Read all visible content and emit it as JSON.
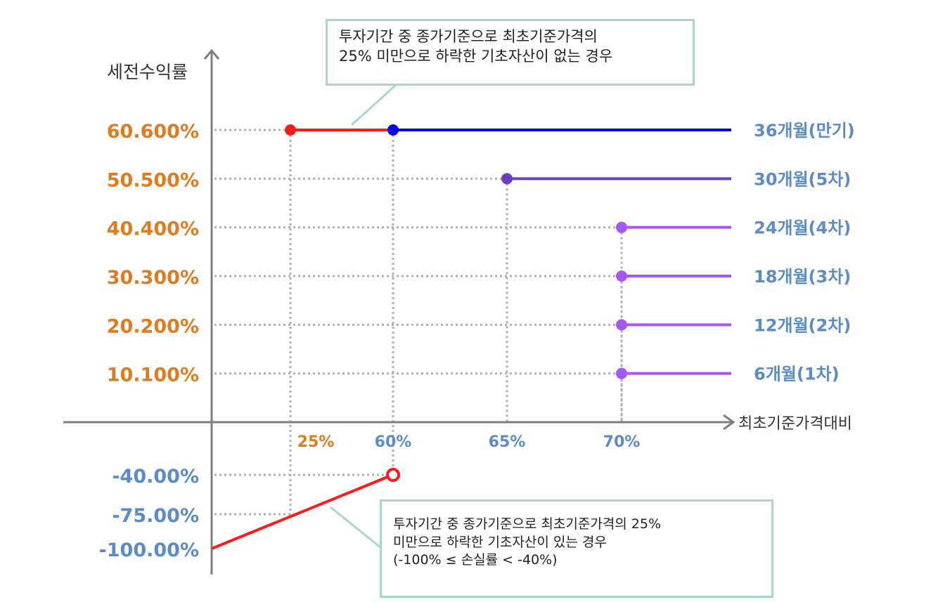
{
  "chart_data": {
    "type": "line",
    "ylabel": "세전수익률",
    "xlabel": "최초기준가격대비",
    "colors": {
      "orange": "#e07b20",
      "steel_blue": "#5b8cc8",
      "red": "#ff1a1a",
      "blue": "#0000ee",
      "indigo": "#6a3fc6",
      "violet": "#a855f7",
      "axis": "#7f7f7f",
      "grid": "#b0b0b0"
    },
    "y_ticks": [
      {
        "label": "60.600%",
        "value": 60.6,
        "color": "orange"
      },
      {
        "label": "50.500%",
        "value": 50.5,
        "color": "orange"
      },
      {
        "label": "40.400%",
        "value": 40.4,
        "color": "orange"
      },
      {
        "label": "30.300%",
        "value": 30.3,
        "color": "orange"
      },
      {
        "label": "20.200%",
        "value": 20.2,
        "color": "orange"
      },
      {
        "label": "10.100%",
        "value": 10.1,
        "color": "orange"
      },
      {
        "label": "-40.00%",
        "value": -40,
        "color": "steel_blue"
      },
      {
        "label": "-75.00%",
        "value": -75,
        "color": "steel_blue"
      },
      {
        "label": "-100.00%",
        "value": -100,
        "color": "steel_blue"
      }
    ],
    "x_ticks": [
      {
        "label": "25%",
        "value": 25,
        "color": "orange"
      },
      {
        "label": "60%",
        "value": 60,
        "color": "steel_blue"
      },
      {
        "label": "65%",
        "value": 65,
        "color": "steel_blue"
      },
      {
        "label": "70%",
        "value": 70,
        "color": "steel_blue"
      }
    ],
    "series": [
      {
        "name": "36개월(만기)",
        "color": "blue",
        "x_start": 60,
        "y": 60.6
      },
      {
        "name": "30개월(5차)",
        "color": "indigo",
        "x_start": 65,
        "y": 50.5
      },
      {
        "name": "24개월(4차)",
        "color": "violet",
        "x_start": 70,
        "y": 40.4
      },
      {
        "name": "18개월(3차)",
        "color": "violet",
        "x_start": 70,
        "y": 30.3
      },
      {
        "name": "12개월(2차)",
        "color": "violet",
        "x_start": 70,
        "y": 20.2
      },
      {
        "name": "6개월(1차)",
        "color": "violet",
        "x_start": 70,
        "y": 10.1
      }
    ],
    "no_breach_segment": {
      "x_start": 25,
      "x_end": 60,
      "y": 60.6,
      "color": "red"
    },
    "loss_line": {
      "points": [
        [
          0,
          -100
        ],
        [
          60,
          -40
        ]
      ],
      "end_marker": "open",
      "color": "red"
    },
    "guide_points": [
      [
        25,
        -75
      ]
    ]
  },
  "callouts": {
    "top": {
      "lines": [
        "투자기간 중 종가기준으로 최초기준가격의",
        "25% 미만으로 하락한 기초자산이 없는 경우"
      ]
    },
    "bottom": {
      "lines": [
        "투자기간 중 종가기준으로 최초기준가격의 25%",
        "미만으로 하락한 기초자산이 있는 경우",
        "(-100% ≤ 손실률 < -40%)"
      ]
    }
  }
}
